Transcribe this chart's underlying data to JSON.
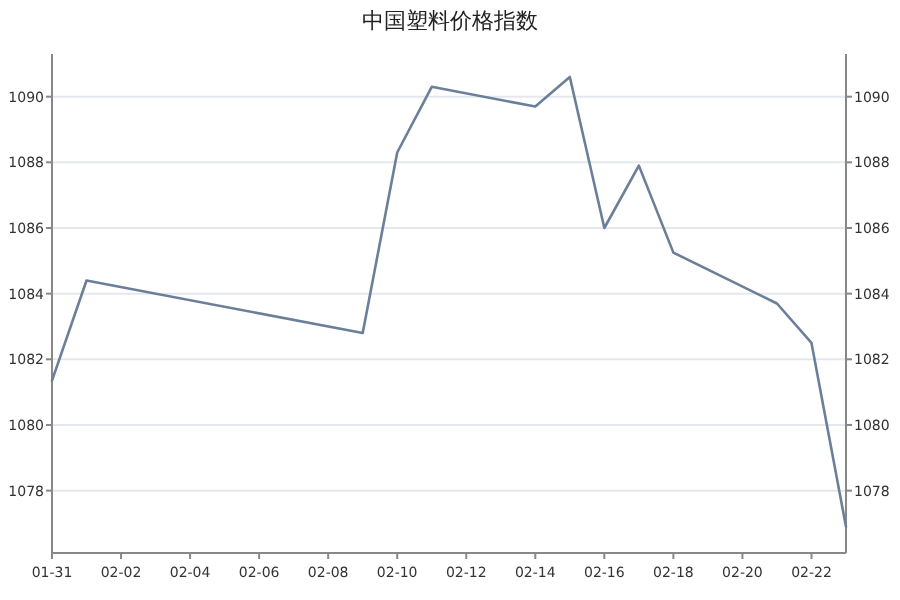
{
  "chart_data": {
    "type": "line",
    "title": "中国塑料价格指数",
    "x": [
      "--01-31",
      "--02-01",
      "--02-09",
      "--02-10",
      "--02-11",
      "--02-14",
      "--02-15",
      "--02-16",
      "--02-17",
      "--02-18",
      "--02-21",
      "--02-22",
      "--02-23"
    ],
    "series": [
      {
        "color": "#6b7f99",
        "values": [
          1081.35,
          1084.4,
          1082.8,
          1088.3,
          1090.3,
          1089.7,
          1090.6,
          1086.0,
          1087.9,
          1085.25,
          1083.7,
          1082.5,
          1076.9
        ]
      }
    ],
    "xlim": [
      "--01-31",
      "--02-23"
    ],
    "xticks": [
      {
        "value": "--01-31",
        "label": "01-31"
      },
      {
        "value": "--02-02",
        "label": "02-02"
      },
      {
        "value": "--02-04",
        "label": "02-04"
      },
      {
        "value": "--02-06",
        "label": "02-06"
      },
      {
        "value": "--02-08",
        "label": "02-08"
      },
      {
        "value": "--02-10",
        "label": "02-10"
      },
      {
        "value": "--02-12",
        "label": "02-12"
      },
      {
        "value": "--02-14",
        "label": "02-14"
      },
      {
        "value": "--02-16",
        "label": "02-16"
      },
      {
        "value": "--02-18",
        "label": "02-18"
      },
      {
        "value": "--02-20",
        "label": "02-20"
      },
      {
        "value": "--02-22",
        "label": "02-22"
      }
    ],
    "ylim": [
      1076.1,
      1091.3
    ],
    "yticks": [
      1078,
      1080,
      1082,
      1084,
      1086,
      1088,
      1090
    ],
    "y2lim": [
      1076.1,
      1091.3
    ],
    "y2ticks": [
      1078,
      1080,
      1082,
      1084,
      1086,
      1088,
      1090
    ],
    "grid": "y",
    "marker": "none",
    "line_style": "solid"
  }
}
